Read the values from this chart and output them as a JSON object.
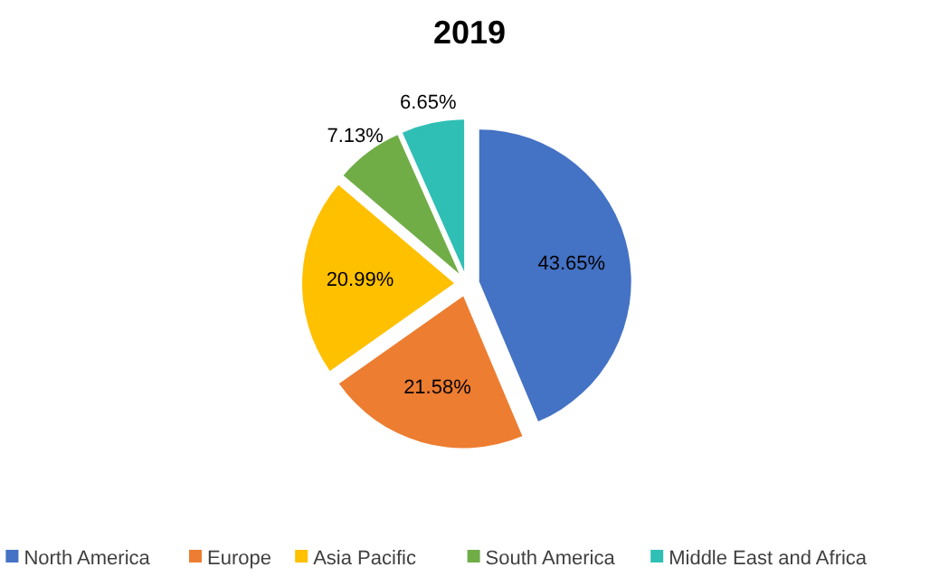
{
  "chart_data": {
    "type": "pie",
    "title": "2019",
    "categories": [
      "North America",
      "Europe",
      "Asia Pacific",
      "South America",
      "Middle East and Africa"
    ],
    "values": [
      43.65,
      21.58,
      20.99,
      7.13,
      6.65
    ],
    "colors": [
      "#4472c4",
      "#ed7d31",
      "#ffc000",
      "#70ad47",
      "#2fbfb4"
    ],
    "value_labels": [
      "43.65%",
      "21.58%",
      "20.99%",
      "7.13%",
      "6.65%"
    ],
    "legend": "bottom"
  }
}
